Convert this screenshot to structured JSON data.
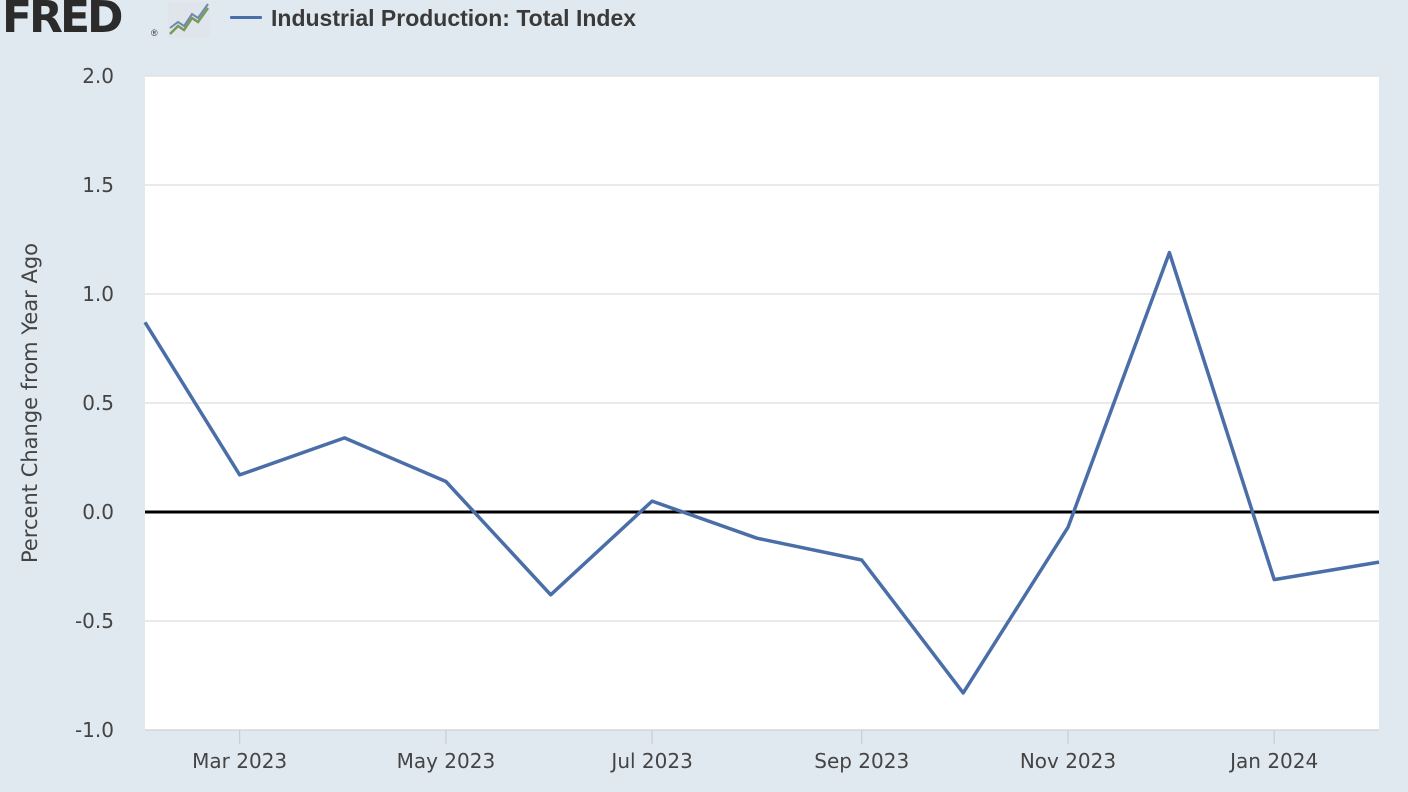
{
  "header": {
    "logo_text": "FRED",
    "logo_reg": "®",
    "legend_label": "Industrial Production: Total Index"
  },
  "colors": {
    "series": "#4a6ea7",
    "zero_line": "#000000",
    "grid": "#dddddd",
    "background": "#e1e9f0",
    "plot_bg": "#ffffff"
  },
  "chart_data": {
    "type": "line",
    "title": "",
    "xlabel": "",
    "ylabel": "Percent Change from Year Ago",
    "ylim": [
      -1.0,
      2.0
    ],
    "yticks": [
      "2.0",
      "1.5",
      "1.0",
      "0.5",
      "0.0",
      "-0.5",
      "-1.0"
    ],
    "xtick_labels": [
      "Mar 2023",
      "May 2023",
      "Jul 2023",
      "Sep 2023",
      "Nov 2023",
      "Jan 2024"
    ],
    "xtick_dates": [
      "2023-03-01",
      "2023-05-01",
      "2023-07-01",
      "2023-09-01",
      "2023-11-01",
      "2024-01-01"
    ],
    "xlim": [
      "2023-02-01",
      "2024-02-01"
    ],
    "grid": true,
    "legend": "top-left",
    "series": [
      {
        "name": "Industrial Production: Total Index",
        "x": [
          "2023-02-01",
          "2023-03-01",
          "2023-04-01",
          "2023-05-01",
          "2023-06-01",
          "2023-07-01",
          "2023-08-01",
          "2023-09-01",
          "2023-10-01",
          "2023-11-01",
          "2023-12-01",
          "2024-01-01",
          "2024-02-01"
        ],
        "values": [
          0.87,
          0.17,
          0.34,
          0.14,
          -0.38,
          0.05,
          -0.12,
          -0.22,
          -0.83,
          -0.07,
          1.19,
          -0.31,
          -0.23
        ]
      }
    ]
  }
}
